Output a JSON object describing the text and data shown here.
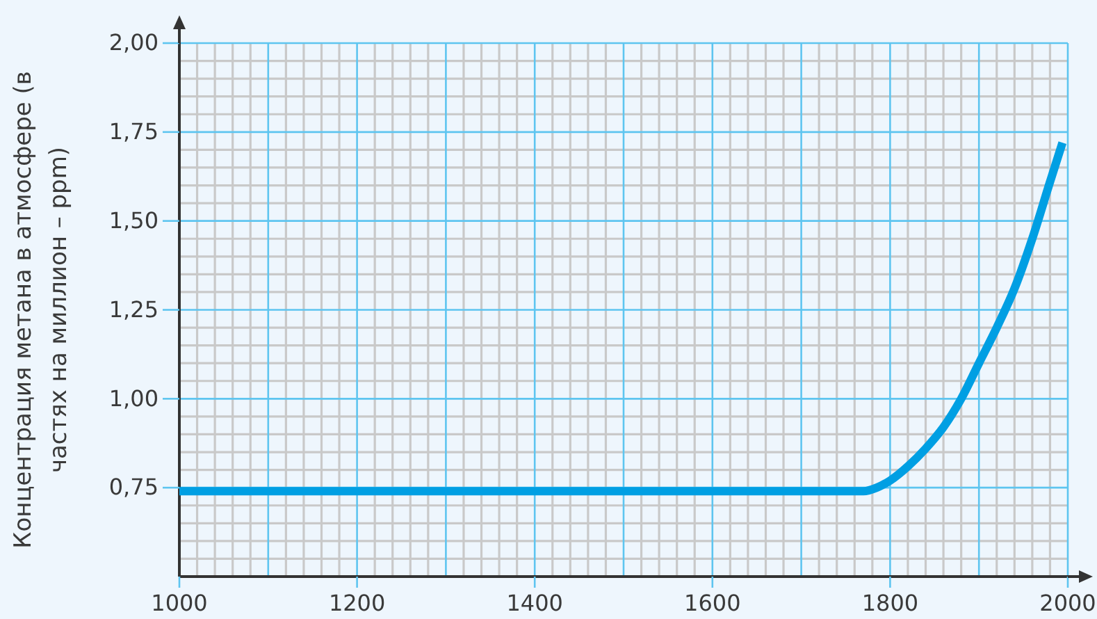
{
  "chart_data": {
    "type": "line",
    "ylabel": "Концентрация метана в атмосфере (в частях на миллион – ppm)",
    "x": [
      1000,
      1200,
      1400,
      1600,
      1770,
      1785,
      1800,
      1820,
      1840,
      1860,
      1880,
      1900,
      1920,
      1940,
      1960,
      1980,
      1994
    ],
    "values": [
      0.74,
      0.74,
      0.74,
      0.74,
      0.74,
      0.75,
      0.77,
      0.81,
      0.86,
      0.92,
      1.0,
      1.1,
      1.2,
      1.31,
      1.45,
      1.61,
      1.72
    ],
    "color": "#009fe3",
    "xlim": [
      1000,
      2000
    ],
    "ylim": [
      0.5,
      2
    ],
    "xticks": [
      1000,
      1200,
      1400,
      1600,
      1800,
      2000
    ],
    "yticks": [
      {
        "value": 0.75,
        "label": "0,75"
      },
      {
        "value": 1,
        "label": "1,00"
      },
      {
        "value": 1.25,
        "label": "1,25"
      },
      {
        "value": 1.5,
        "label": "1,50"
      },
      {
        "value": 1.75,
        "label": "1,75"
      },
      {
        "value": 2,
        "label": "2,00"
      }
    ],
    "grid": true
  }
}
